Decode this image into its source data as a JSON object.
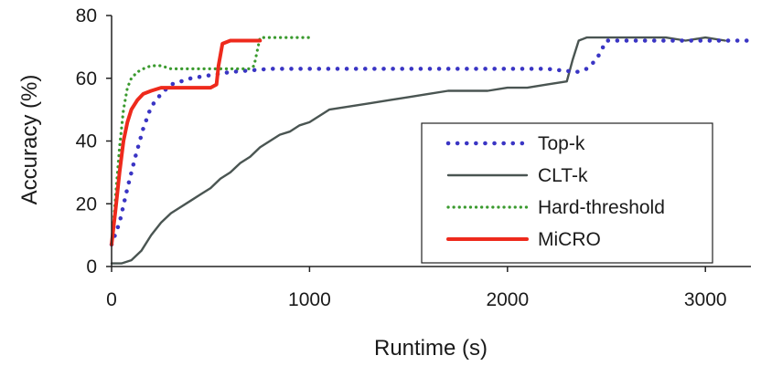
{
  "chart_data": {
    "type": "line",
    "title": "",
    "xlabel": "Runtime (s)",
    "ylabel": "Accuracy (%)",
    "xlim": [
      0,
      3230
    ],
    "ylim": [
      0,
      80
    ],
    "xticks": [
      0,
      1000,
      2000,
      3000
    ],
    "xtick_labels": [
      "0",
      "1000",
      "2000",
      "3000"
    ],
    "yticks": [
      0,
      20,
      40,
      60,
      80
    ],
    "ytick_labels": [
      "0",
      "20",
      "40",
      "60",
      "80"
    ],
    "grid": false,
    "legend": "bottom-right",
    "series": [
      {
        "name": "Top-k",
        "color": "#3a35c4",
        "style": "dotted",
        "x": [
          0,
          40,
          80,
          120,
          160,
          200,
          250,
          300,
          350,
          400,
          500,
          600,
          800,
          1000,
          1200,
          1400,
          1600,
          1800,
          2000,
          2200,
          2350,
          2400,
          2450,
          2500,
          2600,
          2800,
          3000,
          3230
        ],
        "y": [
          7,
          14,
          25,
          35,
          44,
          51,
          55,
          58,
          59,
          60,
          61,
          62,
          63,
          63,
          63,
          63,
          63,
          63,
          63,
          63,
          62,
          63,
          66,
          72,
          72,
          72,
          72,
          72
        ]
      },
      {
        "name": "CLT-k",
        "color": "#4a5552",
        "style": "solid",
        "x": [
          0,
          50,
          100,
          150,
          200,
          250,
          300,
          350,
          400,
          450,
          500,
          550,
          600,
          650,
          700,
          750,
          800,
          850,
          900,
          950,
          1000,
          1050,
          1100,
          1200,
          1300,
          1400,
          1500,
          1600,
          1700,
          1800,
          1900,
          2000,
          2100,
          2200,
          2300,
          2330,
          2360,
          2400,
          2500,
          2600,
          2700,
          2800,
          2900,
          3000,
          3100
        ],
        "y": [
          1,
          1,
          2,
          5,
          10,
          14,
          17,
          19,
          21,
          23,
          25,
          28,
          30,
          33,
          35,
          38,
          40,
          42,
          43,
          45,
          46,
          48,
          50,
          51,
          52,
          53,
          54,
          55,
          56,
          56,
          56,
          57,
          57,
          58,
          59,
          66,
          72,
          73,
          73,
          73,
          73,
          73,
          72,
          73,
          72
        ]
      },
      {
        "name": "Hard-threshold",
        "color": "#3a9a2e",
        "style": "dotted",
        "x": [
          0,
          20,
          40,
          60,
          80,
          100,
          130,
          160,
          200,
          250,
          300,
          400,
          500,
          600,
          700,
          720,
          750,
          800,
          900,
          1000
        ],
        "y": [
          7,
          22,
          38,
          50,
          57,
          60,
          62,
          63,
          64,
          64,
          63,
          63,
          63,
          63,
          63,
          64,
          73,
          73,
          73,
          73
        ]
      },
      {
        "name": "MiCRO",
        "color": "#ee2a1c",
        "style": "solid",
        "x": [
          0,
          20,
          40,
          60,
          80,
          100,
          130,
          160,
          200,
          250,
          300,
          350,
          400,
          450,
          500,
          530,
          540,
          560,
          600,
          650,
          700,
          750
        ],
        "y": [
          7,
          18,
          30,
          40,
          46,
          50,
          53,
          55,
          56,
          57,
          57,
          57,
          57,
          57,
          57,
          58,
          64,
          71,
          72,
          72,
          72,
          72
        ]
      }
    ]
  }
}
